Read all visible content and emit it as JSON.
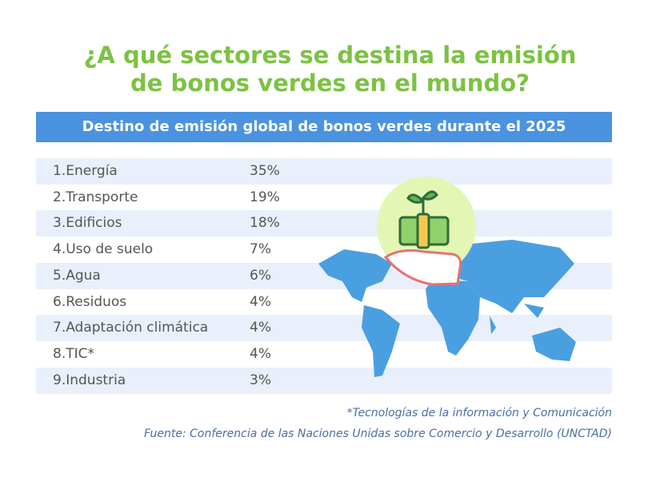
{
  "title": [
    "¿A qué sectores se destina la emisión",
    "de bonos verdes en el mundo?"
  ],
  "table": {
    "caption": "Destino de emisión global de bonos verdes durante el 2025",
    "rows": [
      [
        "1.Energía",
        "35%"
      ],
      [
        "2.Transporte",
        "19%"
      ],
      [
        "3.Edificios",
        "18%"
      ],
      [
        "4.Uso de suelo",
        "7%"
      ],
      [
        "5.Agua",
        "6%"
      ],
      [
        "6.Residuos",
        "4%"
      ],
      [
        "7.Adaptación climática",
        "4%"
      ],
      [
        "8.TIC*",
        "4%"
      ],
      [
        "9.Industria",
        "3%"
      ]
    ]
  },
  "notes": [
    "*Tecnologías de la información y Comunicación",
    "Fuente: Conferencia de las Naciones Unidas sobre Comercio y Desarrollo (UNCTAD)"
  ]
}
